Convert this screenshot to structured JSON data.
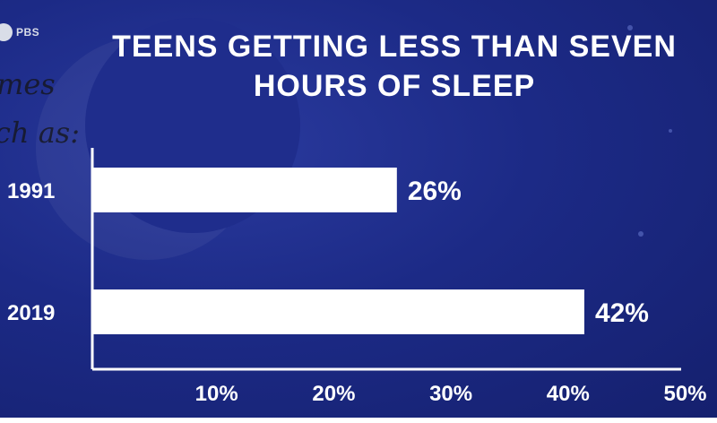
{
  "logo": {
    "text": "PBS"
  },
  "scribble": [
    "mes",
    "ch as:"
  ],
  "chart_data": {
    "type": "bar",
    "orientation": "horizontal",
    "title_lines": [
      "TEENS GETTING LESS THAN SEVEN",
      "HOURS OF SLEEP"
    ],
    "categories": [
      "1991",
      "2019"
    ],
    "values": [
      26,
      42
    ],
    "data_labels": [
      "26%",
      "42%"
    ],
    "x_ticks": [
      10,
      20,
      30,
      40,
      50
    ],
    "x_tick_labels": [
      "10%",
      "20%",
      "30%",
      "40%",
      "50%"
    ],
    "xlim": [
      0,
      55
    ],
    "grid": false,
    "colors": {
      "background": "#1c2a86",
      "bar": "#ffffff",
      "text": "#ffffff",
      "axis": "#ffffff"
    }
  }
}
